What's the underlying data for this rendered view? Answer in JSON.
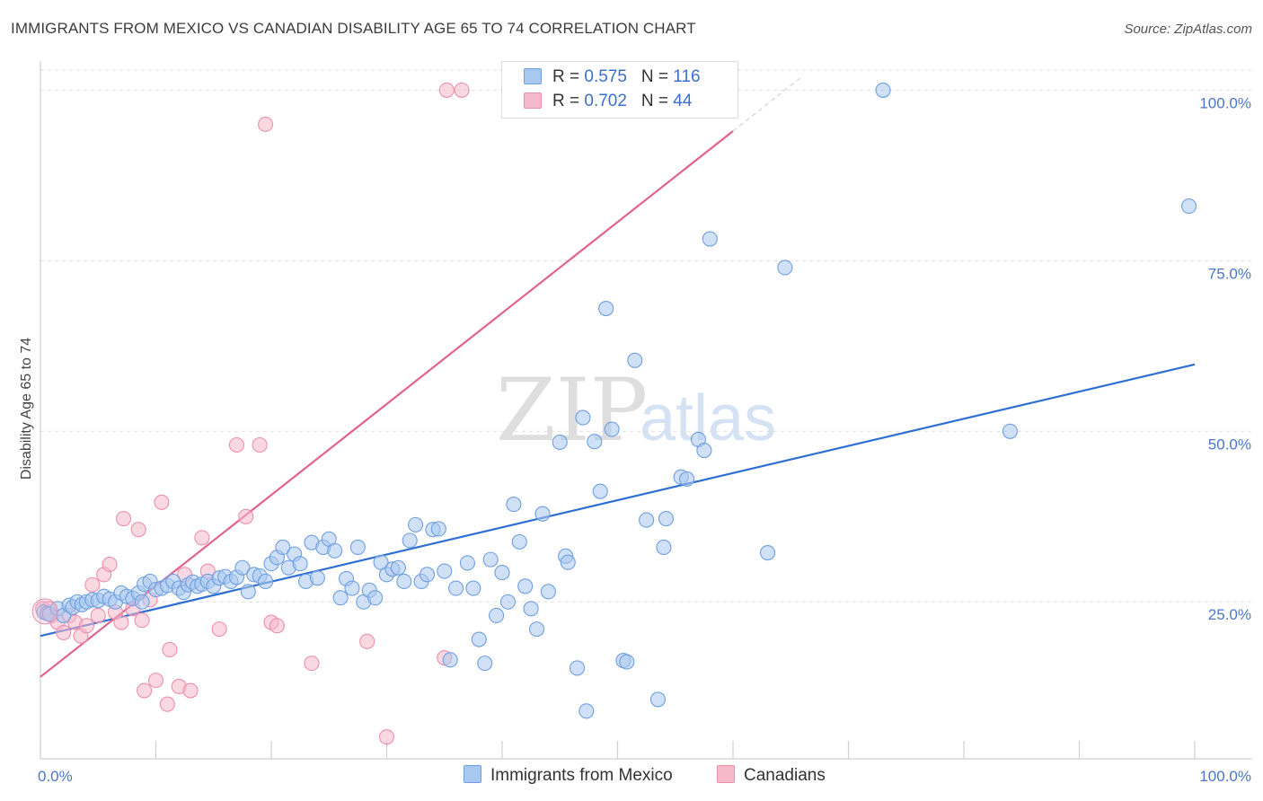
{
  "title": "IMMIGRANTS FROM MEXICO VS CANADIAN DISABILITY AGE 65 TO 74 CORRELATION CHART",
  "source": "Source: ZipAtlas.com",
  "watermark": {
    "zip": "ZIP",
    "atlas": "atlas"
  },
  "legend": [
    {
      "r_label": "R = ",
      "r_value": "0.575",
      "n_label": "N = ",
      "n_value": "116",
      "color": "#a9c8f0"
    },
    {
      "r_label": "R = ",
      "r_value": "0.702",
      "n_label": "N = ",
      "n_value": "44",
      "color": "#f6b8cb"
    }
  ],
  "bottom_legend": [
    {
      "label": "Immigrants from Mexico",
      "color": "#a9c8f0"
    },
    {
      "label": "Canadians",
      "color": "#f6b8cb"
    }
  ],
  "chart_data": {
    "type": "scatter",
    "ylabel": "Disability Age 65 to 74",
    "xlabel": "",
    "x_tick_labels": [
      "0.0%",
      "100.0%"
    ],
    "y_tick_labels": [
      "25.0%",
      "50.0%",
      "75.0%",
      "100.0%"
    ],
    "y_ticks": [
      25,
      50,
      75,
      100
    ],
    "xlim": [
      0,
      100
    ],
    "ylim": [
      2,
      104
    ],
    "grid": "horizontal dashed",
    "series": [
      {
        "name": "Immigrants from Mexico",
        "color": "#6e9fe0",
        "fill": "#a9c8f0",
        "trend": {
          "x": [
            0,
            100
          ],
          "y": [
            20,
            59.8
          ],
          "color": "#2f6fd1"
        },
        "points": [
          [
            0.3,
            23.5
          ],
          [
            0.6,
            23.3
          ],
          [
            0.8,
            23.2
          ],
          [
            1.5,
            24
          ],
          [
            2,
            23
          ],
          [
            2.5,
            24.5
          ],
          [
            2.8,
            24.2
          ],
          [
            3.2,
            25
          ],
          [
            3.6,
            24.6
          ],
          [
            4,
            25
          ],
          [
            4.5,
            25.3
          ],
          [
            5,
            25.2
          ],
          [
            5.5,
            25.8
          ],
          [
            6,
            25.4
          ],
          [
            6.5,
            25
          ],
          [
            7,
            26.3
          ],
          [
            7.5,
            25.8
          ],
          [
            8,
            25.5
          ],
          [
            8.5,
            26.3
          ],
          [
            8.8,
            25
          ],
          [
            9,
            27.6
          ],
          [
            9.5,
            28
          ],
          [
            10,
            26.8
          ],
          [
            10.5,
            27
          ],
          [
            11,
            27.4
          ],
          [
            11.5,
            28
          ],
          [
            12,
            27
          ],
          [
            12.4,
            26.4
          ],
          [
            12.8,
            27.5
          ],
          [
            13.2,
            27.9
          ],
          [
            13.6,
            27.3
          ],
          [
            14,
            27.6
          ],
          [
            14.5,
            28
          ],
          [
            15,
            27.3
          ],
          [
            15.5,
            28.5
          ],
          [
            16,
            28.7
          ],
          [
            16.5,
            28
          ],
          [
            17,
            28.6
          ],
          [
            17.5,
            30
          ],
          [
            18,
            26.5
          ],
          [
            18.5,
            29
          ],
          [
            19,
            28.8
          ],
          [
            19.5,
            28
          ],
          [
            20,
            30.6
          ],
          [
            20.5,
            31.5
          ],
          [
            21,
            33
          ],
          [
            21.5,
            30
          ],
          [
            22,
            32
          ],
          [
            22.5,
            30.6
          ],
          [
            23,
            28
          ],
          [
            23.5,
            33.7
          ],
          [
            24,
            28.5
          ],
          [
            24.5,
            33
          ],
          [
            25,
            34.2
          ],
          [
            25.5,
            32.5
          ],
          [
            26,
            25.6
          ],
          [
            26.5,
            28.4
          ],
          [
            27,
            27
          ],
          [
            27.5,
            33
          ],
          [
            28,
            25
          ],
          [
            28.5,
            26.7
          ],
          [
            29,
            25.6
          ],
          [
            29.5,
            30.8
          ],
          [
            30,
            29
          ],
          [
            30.5,
            29.8
          ],
          [
            31,
            30
          ],
          [
            31.5,
            28
          ],
          [
            32,
            34
          ],
          [
            32.5,
            36.3
          ],
          [
            33,
            28
          ],
          [
            33.5,
            29
          ],
          [
            34,
            35.6
          ],
          [
            34.5,
            35.7
          ],
          [
            35,
            29.5
          ],
          [
            35.5,
            16.5
          ],
          [
            36,
            27
          ],
          [
            37,
            30.7
          ],
          [
            37.5,
            27
          ],
          [
            38,
            19.5
          ],
          [
            38.5,
            16
          ],
          [
            39,
            31.2
          ],
          [
            39.5,
            23
          ],
          [
            40,
            29.3
          ],
          [
            40.5,
            25
          ],
          [
            41,
            39.3
          ],
          [
            41.5,
            33.8
          ],
          [
            42,
            27.3
          ],
          [
            42.5,
            24
          ],
          [
            43,
            21
          ],
          [
            43.5,
            37.9
          ],
          [
            44,
            26.5
          ],
          [
            45,
            48.4
          ],
          [
            45.5,
            31.7
          ],
          [
            45.7,
            30.8
          ],
          [
            46.5,
            15.3
          ],
          [
            47,
            52
          ],
          [
            47.3,
            9
          ],
          [
            48,
            48.5
          ],
          [
            48.5,
            41.2
          ],
          [
            49,
            68
          ],
          [
            49.5,
            50.3
          ],
          [
            50.5,
            16.4
          ],
          [
            50.8,
            16.2
          ],
          [
            51.5,
            60.4
          ],
          [
            52.5,
            37
          ],
          [
            53.5,
            10.7
          ],
          [
            54,
            33
          ],
          [
            54.2,
            37.2
          ],
          [
            55.5,
            43.3
          ],
          [
            56,
            43
          ],
          [
            57,
            48.8
          ],
          [
            57.5,
            47.2
          ],
          [
            58,
            78.2
          ],
          [
            63,
            32.2
          ],
          [
            64.5,
            74
          ],
          [
            73,
            100
          ],
          [
            84,
            50
          ],
          [
            99.5,
            83
          ]
        ]
      },
      {
        "name": "Canadians",
        "color": "#ec8fae",
        "fill": "#f6b8cb",
        "trend": {
          "x": [
            0,
            60
          ],
          "y": [
            14,
            94
          ],
          "color": "#e3628d"
        },
        "points": [
          [
            0.2,
            24
          ],
          [
            0.7,
            24
          ],
          [
            1,
            23
          ],
          [
            1.5,
            22
          ],
          [
            2,
            20.5
          ],
          [
            2.5,
            23
          ],
          [
            3,
            22
          ],
          [
            3.5,
            20
          ],
          [
            4,
            21.5
          ],
          [
            4.5,
            27.5
          ],
          [
            5,
            23
          ],
          [
            5.5,
            29
          ],
          [
            6,
            30.5
          ],
          [
            6.5,
            23.5
          ],
          [
            7,
            22
          ],
          [
            7.2,
            37.2
          ],
          [
            8,
            24
          ],
          [
            8.5,
            35.6
          ],
          [
            8.8,
            22.3
          ],
          [
            9,
            12
          ],
          [
            9.5,
            25.3
          ],
          [
            10,
            13.5
          ],
          [
            10.5,
            39.6
          ],
          [
            11,
            10
          ],
          [
            11.2,
            18
          ],
          [
            12,
            12.6
          ],
          [
            12.5,
            29
          ],
          [
            13,
            12
          ],
          [
            14,
            34.4
          ],
          [
            14.5,
            29.5
          ],
          [
            15.5,
            21
          ],
          [
            17,
            48
          ],
          [
            17.8,
            37.5
          ],
          [
            19,
            48
          ],
          [
            19.5,
            95
          ],
          [
            20,
            22
          ],
          [
            20.5,
            21.5
          ],
          [
            23.5,
            16
          ],
          [
            28.3,
            19.2
          ],
          [
            30,
            5.2
          ],
          [
            35,
            16.8
          ],
          [
            35.2,
            100
          ],
          [
            36.5,
            100
          ],
          [
            55,
            100
          ]
        ]
      }
    ]
  }
}
